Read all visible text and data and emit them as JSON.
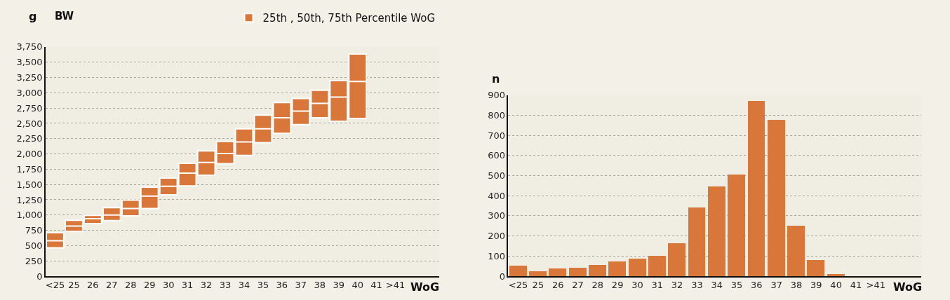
{
  "chart_data": [
    {
      "type": "box",
      "title": "BW",
      "ylabel": "g",
      "xlabel": "WoG",
      "categories": [
        "<25",
        "25",
        "26",
        "27",
        "28",
        "29",
        "30",
        "31",
        "32",
        "33",
        "34",
        "35",
        "36",
        "37",
        "38",
        "39",
        "40",
        "41",
        ">41"
      ],
      "series": [
        {
          "name": "25th , 50th, 75th Percentile WoG",
          "color": "#d9773a",
          "boxes": [
            {
              "low": 465,
              "q1": 465,
              "median": 580,
              "q3": 710,
              "high": 710
            },
            {
              "low": 730,
              "q1": 730,
              "median": 820,
              "q3": 915,
              "high": 915
            },
            {
              "low": 860,
              "q1": 860,
              "median": 940,
              "q3": 995,
              "high": 995
            },
            {
              "low": 910,
              "q1": 910,
              "median": 1000,
              "q3": 1120,
              "high": 1120
            },
            {
              "low": 985,
              "q1": 985,
              "median": 1105,
              "q3": 1245,
              "high": 1245
            },
            {
              "low": 1105,
              "q1": 1105,
              "median": 1310,
              "q3": 1455,
              "high": 1455
            },
            {
              "low": 1330,
              "q1": 1330,
              "median": 1470,
              "q3": 1605,
              "high": 1605
            },
            {
              "low": 1475,
              "q1": 1475,
              "median": 1685,
              "q3": 1845,
              "high": 1845
            },
            {
              "low": 1650,
              "q1": 1650,
              "median": 1860,
              "q3": 2050,
              "high": 2050
            },
            {
              "low": 1840,
              "q1": 1840,
              "median": 2005,
              "q3": 2205,
              "high": 2205
            },
            {
              "low": 1975,
              "q1": 1975,
              "median": 2195,
              "q3": 2410,
              "high": 2410
            },
            {
              "low": 2185,
              "q1": 2185,
              "median": 2410,
              "q3": 2635,
              "high": 2635
            },
            {
              "low": 2335,
              "q1": 2335,
              "median": 2590,
              "q3": 2840,
              "high": 2840
            },
            {
              "low": 2480,
              "q1": 2480,
              "median": 2700,
              "q3": 2905,
              "high": 2905
            },
            {
              "low": 2590,
              "q1": 2590,
              "median": 2825,
              "q3": 3040,
              "high": 3040
            },
            {
              "low": 2535,
              "q1": 2535,
              "median": 2930,
              "q3": 3200,
              "high": 3200
            },
            {
              "low": 2580,
              "q1": 2580,
              "median": 3185,
              "q3": 3635,
              "high": 3635
            },
            null,
            null
          ]
        }
      ],
      "ylim": [
        0,
        3750
      ],
      "yticks": [
        0,
        250,
        500,
        750,
        {
          "value": 1000,
          "label": "1,000"
        },
        {
          "value": 1250,
          "label": "1,250"
        },
        {
          "value": 1500,
          "label": "1,500"
        },
        {
          "value": 1750,
          "label": "1,750"
        },
        {
          "value": 2000,
          "label": "2,000"
        },
        {
          "value": 2250,
          "label": "2,250"
        },
        {
          "value": 2500,
          "label": "2,500"
        },
        {
          "value": 2750,
          "label": "2,750"
        },
        {
          "value": 3000,
          "label": "3,000"
        },
        {
          "value": 3250,
          "label": "3,250"
        },
        {
          "value": 3500,
          "label": "3,500"
        },
        {
          "value": 3750,
          "label": "3,750"
        }
      ],
      "grid": "y",
      "legend": "top right"
    },
    {
      "type": "bar",
      "ylabel": "n",
      "xlabel": "WoG",
      "categories": [
        "<25",
        "25",
        "26",
        "27",
        "28",
        "29",
        "30",
        "31",
        "32",
        "33",
        "34",
        "35",
        "36",
        "37",
        "38",
        "39",
        "40",
        "41",
        ">41"
      ],
      "series": [
        {
          "color": "#d9773a",
          "values": [
            55,
            27,
            41,
            44,
            58,
            75,
            89,
            102,
            164,
            341,
            447,
            505,
            873,
            777,
            252,
            82,
            10,
            0,
            0
          ]
        }
      ],
      "ylim": [
        0,
        900
      ],
      "yticks": [
        0,
        100,
        200,
        300,
        400,
        500,
        600,
        700,
        800,
        900
      ],
      "grid": "y"
    }
  ]
}
